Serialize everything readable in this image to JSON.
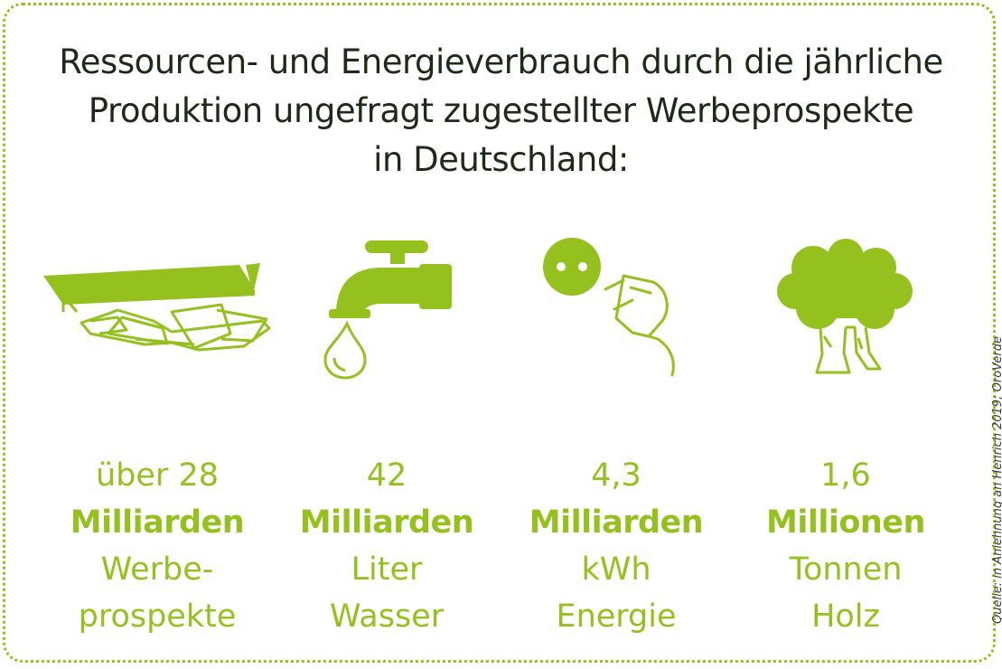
{
  "title": {
    "line1": "Ressourcen- und Energieverbrauch durch die jährliche",
    "line2": "Produktion ungefragt zugestellter Werbeprospekte",
    "line3": "in Deutschland:"
  },
  "colors": {
    "accent": "#95c11f",
    "text": "#1d2a18"
  },
  "stats": [
    {
      "icon": "mailbox-brochures-icon",
      "value": "über 28",
      "unit": "Milliarden",
      "label1": "Werbe-",
      "label2": "prospekte"
    },
    {
      "icon": "water-tap-icon",
      "value": "42",
      "unit": "Milliarden",
      "label1": "Liter",
      "label2": "Wasser"
    },
    {
      "icon": "power-plug-icon",
      "value": "4,3",
      "unit": "Milliarden",
      "label1": "kWh",
      "label2": "Energie"
    },
    {
      "icon": "tree-icon",
      "value": "1,6",
      "unit": "Millionen",
      "label1": "Tonnen",
      "label2": "Holz"
    }
  ],
  "source": "Quelle: in Anlehnung an Henrich 2019; OroVerde"
}
